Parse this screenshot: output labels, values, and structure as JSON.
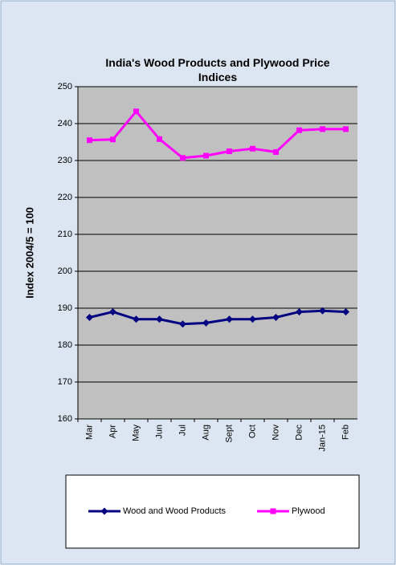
{
  "chart_data": {
    "type": "line",
    "title": "India's  Wood Products and Plywood Price Indices",
    "ylabel": "Index 2004/5 = 100",
    "categories": [
      "Mar",
      "Apr",
      "May",
      "Jun",
      "Jul",
      "Aug",
      "Sept",
      "Oct",
      "Nov",
      "Dec",
      "Jan-15",
      "Feb"
    ],
    "series": [
      {
        "name": "Wood and Wood Products",
        "color": "#000080",
        "marker": "diamond",
        "values": [
          187.5,
          189.0,
          187.0,
          187.0,
          185.7,
          186.0,
          187.0,
          187.0,
          187.5,
          189.0,
          189.3,
          189.0
        ]
      },
      {
        "name": "Plywood",
        "color": "#ff00ff",
        "marker": "square",
        "values": [
          235.5,
          235.7,
          243.3,
          235.8,
          230.7,
          231.3,
          232.5,
          233.2,
          232.3,
          238.2,
          238.5,
          238.5
        ]
      }
    ],
    "ylim": [
      160,
      250
    ],
    "yticks": [
      160,
      170,
      180,
      190,
      200,
      210,
      220,
      230,
      240,
      250
    ],
    "grid": true,
    "legend": "bottom"
  }
}
